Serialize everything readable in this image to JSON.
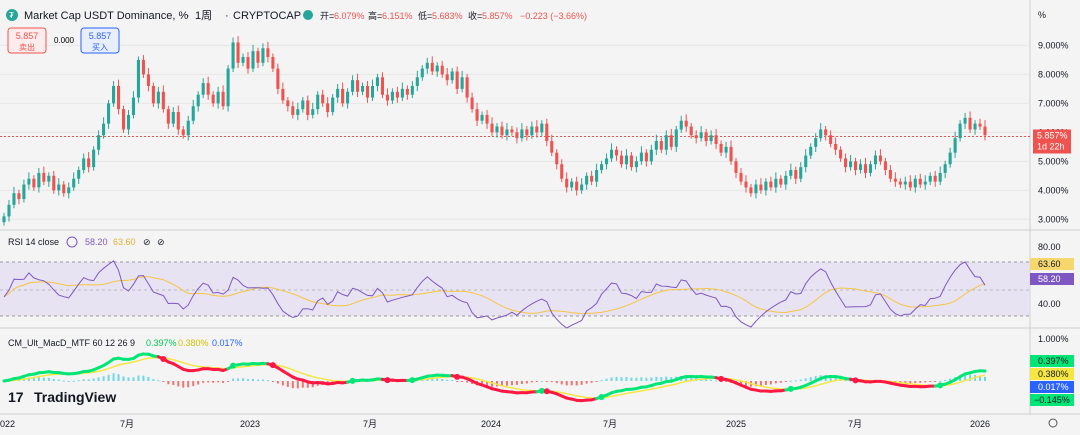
{
  "header": {
    "title": "Market Cap USDT Dominance, %",
    "interval": "1周",
    "source": "CRYPTOCAP",
    "open_label": "开=",
    "open": "6.079%",
    "high_label": "高=",
    "high": "6.151%",
    "low_label": "低=",
    "low": "5.683%",
    "close_label": "收=",
    "close": "5.857%",
    "change": "−0.223 (−3.66%)",
    "sell_price": "5.857",
    "sell_label": "卖出",
    "spread": "0.000",
    "buy_price": "5.857",
    "buy_label": "买入"
  },
  "price_axis": {
    "unit": "%",
    "current": "5.857%",
    "countdown": "1d 22h"
  },
  "rsi": {
    "label": "RSI 14 close",
    "value1": "58.20",
    "value2": "63.60",
    "upper_tick": "80.00",
    "lower_tick": "40.00"
  },
  "macd": {
    "label": "CM_Ult_MacD_MTF 60 12 26 9",
    "v1": "0.397%",
    "v2": "0.380%",
    "v3": "0.017%",
    "v4": "−0.145%",
    "top_tick": "1.000%"
  },
  "brand": "TradingView",
  "colors": {
    "up": "#26a69a",
    "down": "#ef5350",
    "rsi": "#7e57c2",
    "rsi_ma": "#f5c542",
    "macd_up": "#00e676",
    "macd_down": "#ff1744",
    "signal": "#f5e642"
  },
  "chart_data": {
    "type": "candlestick",
    "title": "Market Cap USDT Dominance, %",
    "x_axis_labels": [
      "022",
      "7月",
      "2023",
      "7月",
      "2024",
      "7月",
      "2025",
      "7月",
      "2026"
    ],
    "y_ticks": [
      "9.000%",
      "8.000%",
      "7.000%",
      "6.000%",
      "5.000%",
      "4.000%",
      "3.000%"
    ],
    "ylim": [
      2.7,
      9.6
    ],
    "close_series": [
      3.1,
      3.5,
      3.9,
      3.7,
      4.2,
      4.4,
      4.1,
      4.6,
      4.3,
      4.5,
      4.0,
      4.2,
      3.9,
      4.1,
      4.4,
      4.7,
      5.1,
      4.8,
      5.4,
      5.9,
      6.3,
      7.0,
      7.6,
      6.8,
      6.1,
      6.6,
      7.2,
      8.5,
      8.0,
      7.6,
      7.0,
      7.4,
      6.8,
      6.3,
      6.7,
      6.1,
      5.9,
      6.4,
      6.9,
      7.3,
      7.7,
      7.3,
      7.0,
      7.4,
      6.9,
      8.2,
      9.1,
      8.4,
      8.6,
      8.2,
      8.8,
      8.4,
      8.9,
      8.6,
      8.2,
      7.5,
      7.1,
      6.9,
      6.6,
      6.8,
      7.1,
      6.6,
      6.8,
      7.3,
      7.0,
      6.7,
      7.2,
      7.5,
      7.0,
      7.4,
      7.8,
      7.4,
      7.6,
      7.2,
      7.6,
      7.9,
      7.3,
      7.1,
      7.4,
      7.2,
      7.5,
      7.3,
      7.6,
      7.9,
      8.2,
      8.4,
      8.1,
      8.3,
      8.0,
      7.8,
      8.1,
      7.5,
      7.9,
      7.2,
      6.8,
      6.4,
      6.6,
      6.3,
      6.0,
      6.2,
      5.9,
      6.1,
      6.0,
      5.8,
      6.1,
      5.9,
      6.2,
      6.0,
      6.3,
      5.7,
      5.3,
      4.9,
      4.4,
      4.1,
      4.3,
      4.0,
      4.2,
      4.5,
      4.3,
      4.7,
      4.9,
      5.1,
      5.4,
      5.2,
      4.9,
      5.2,
      4.8,
      5.0,
      5.3,
      5.0,
      5.4,
      5.7,
      5.4,
      5.9,
      5.5,
      6.1,
      6.4,
      6.2,
      5.9,
      5.8,
      6.0,
      5.7,
      5.9,
      5.6,
      5.3,
      5.5,
      5.0,
      4.6,
      4.3,
      4.1,
      3.9,
      4.2,
      4.0,
      4.3,
      4.1,
      4.4,
      4.2,
      4.5,
      4.7,
      4.4,
      4.8,
      5.2,
      5.5,
      5.8,
      6.1,
      5.9,
      5.6,
      5.4,
      5.1,
      4.8,
      5.0,
      4.7,
      4.9,
      4.6,
      4.9,
      5.2,
      5.0,
      4.7,
      4.4,
      4.3,
      4.2,
      4.3,
      4.1,
      4.4,
      4.2,
      4.3,
      4.5,
      4.3,
      4.6,
      4.9,
      5.3,
      5.8,
      6.3,
      6.5,
      6.1,
      6.3,
      6.2,
      5.9
    ],
    "rsi_range": [
      20,
      95
    ],
    "rsi_band": [
      70,
      30
    ],
    "rsi_value": 58.2,
    "rsi_ma_value": 63.6,
    "macd_values": {
      "macd": 0.397,
      "signal": 0.38,
      "hist": 0.017,
      "low": -0.145
    }
  }
}
